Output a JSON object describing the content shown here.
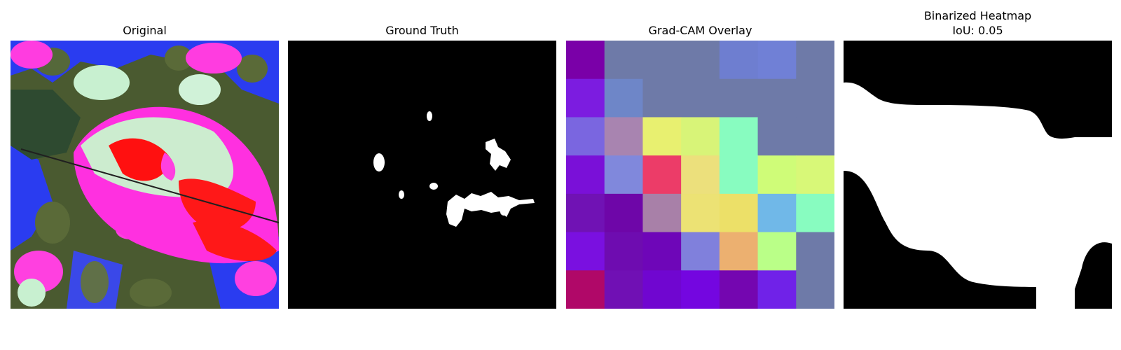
{
  "figure": {
    "panels": [
      {
        "id": "original",
        "title": "Original"
      },
      {
        "id": "ground_truth",
        "title": "Ground Truth"
      },
      {
        "id": "gradcam_overlay",
        "title": "Grad-CAM Overlay"
      },
      {
        "id": "binarized_heatmap",
        "title": "Binarized Heatmap",
        "subtitle": "IoU: 0.05"
      }
    ]
  },
  "gradcam_grid": {
    "rows": 7,
    "cols": 7,
    "colors": [
      [
        "#7a00a8",
        "#6e7aa8",
        "#6e7aa8",
        "#6e7aa8",
        "#6e7ed0",
        "#7080d6",
        "#6e7aa8"
      ],
      [
        "#7c1ce0",
        "#6e86c8",
        "#6e7aa8",
        "#6e7aa8",
        "#6e7aa8",
        "#6e7aa8",
        "#6e7aa8"
      ],
      [
        "#7a66e0",
        "#a884b0",
        "#e8f070",
        "#d8f478",
        "#88fcc0",
        "#6e7aa8",
        "#6e7aa8"
      ],
      [
        "#7a10d8",
        "#8088dc",
        "#ec3c68",
        "#ece07c",
        "#88fcc0",
        "#cffc78",
        "#d8f878"
      ],
      [
        "#7012b4",
        "#6e06a8",
        "#a880a8",
        "#ece274",
        "#ece068",
        "#70b8e8",
        "#88fcc0"
      ],
      [
        "#7a10e0",
        "#6e0cb0",
        "#6e06b8",
        "#8080dc",
        "#ecb070",
        "#baff88",
        "#6e7aa8"
      ],
      [
        "#b00868",
        "#7010b4",
        "#7006d0",
        "#7406e0",
        "#7406b0",
        "#7022e8",
        "#6e7aa8"
      ]
    ]
  },
  "colors": {
    "background": "#ffffff",
    "mask_foreground": "#ffffff",
    "mask_background": "#000000"
  }
}
